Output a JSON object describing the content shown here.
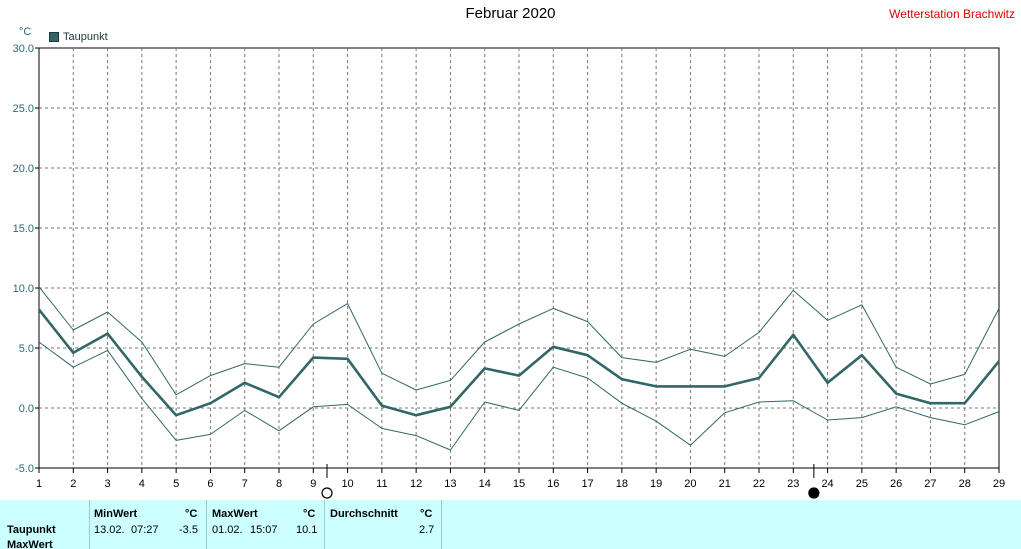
{
  "header": {
    "title": "Februar 2020",
    "station": "Wetterstation Brachwitz",
    "unit": "°C",
    "legend_label": "Taupunkt"
  },
  "chart_data": {
    "type": "line",
    "title": "Februar 2020",
    "ylabel": "°C",
    "xlim": [
      1,
      29
    ],
    "ylim": [
      -5,
      30
    ],
    "x_ticks": [
      1,
      2,
      3,
      4,
      5,
      6,
      7,
      8,
      9,
      10,
      11,
      12,
      13,
      14,
      15,
      16,
      17,
      18,
      19,
      20,
      21,
      22,
      23,
      24,
      25,
      26,
      27,
      28,
      29
    ],
    "y_ticks": [
      -5.0,
      0.0,
      5.0,
      10.0,
      15.0,
      20.0,
      25.0,
      30.0
    ],
    "y_tick_labels": [
      "-5.0",
      "0.0",
      "5.0",
      "10.0",
      "15.0",
      "20.0",
      "25.0",
      "30.0"
    ],
    "grid": true,
    "legend": "top-left",
    "x": [
      1,
      2,
      3,
      4,
      5,
      6,
      7,
      8,
      9,
      10,
      11,
      12,
      13,
      14,
      15,
      16,
      17,
      18,
      19,
      20,
      21,
      22,
      23,
      24,
      25,
      26,
      27,
      28,
      29
    ],
    "series": [
      {
        "name": "Taupunkt",
        "role": "avg",
        "color": "#336666",
        "values": [
          8.2,
          4.6,
          6.2,
          2.6,
          -0.6,
          0.4,
          2.1,
          0.9,
          4.2,
          4.1,
          0.2,
          -0.6,
          0.1,
          3.3,
          2.7,
          5.1,
          4.4,
          2.4,
          1.8,
          1.8,
          1.8,
          2.5,
          6.1,
          2.1,
          4.4,
          1.2,
          0.4,
          0.4,
          3.9
        ]
      },
      {
        "role": "max",
        "color": "#336666",
        "values": [
          10.1,
          6.5,
          8.0,
          5.5,
          1.1,
          2.7,
          3.7,
          3.4,
          7.0,
          8.7,
          2.9,
          1.5,
          2.3,
          5.5,
          7.0,
          8.3,
          7.2,
          4.2,
          3.8,
          4.9,
          4.3,
          6.3,
          9.8,
          7.3,
          8.6,
          3.4,
          2.0,
          2.8,
          8.3
        ]
      },
      {
        "role": "min",
        "color": "#336666",
        "values": [
          5.5,
          3.4,
          4.8,
          0.8,
          -2.7,
          -2.2,
          -0.2,
          -1.9,
          0.1,
          0.3,
          -1.7,
          -2.3,
          -3.5,
          0.5,
          -0.2,
          3.4,
          2.5,
          0.4,
          -1.1,
          -3.1,
          -0.4,
          0.5,
          0.6,
          -1.0,
          -0.8,
          0.1,
          -0.8,
          -1.4,
          -0.3
        ]
      }
    ],
    "moon_phases": [
      {
        "x": 9.4,
        "phase": "full"
      },
      {
        "x": 23.6,
        "phase": "new"
      }
    ]
  },
  "stats": {
    "row_label": "Taupunkt",
    "row2_label": "MaxWert",
    "min": {
      "header": "MinWert",
      "unit": "°C",
      "date": "13.02.",
      "time": "07:27",
      "value": "-3.5"
    },
    "max": {
      "header": "MaxWert",
      "unit": "°C",
      "date": "01.02.",
      "time": "15:07",
      "value": "10.1"
    },
    "avg": {
      "header": "Durchschnitt",
      "unit": "°C",
      "value": "2.7"
    }
  }
}
